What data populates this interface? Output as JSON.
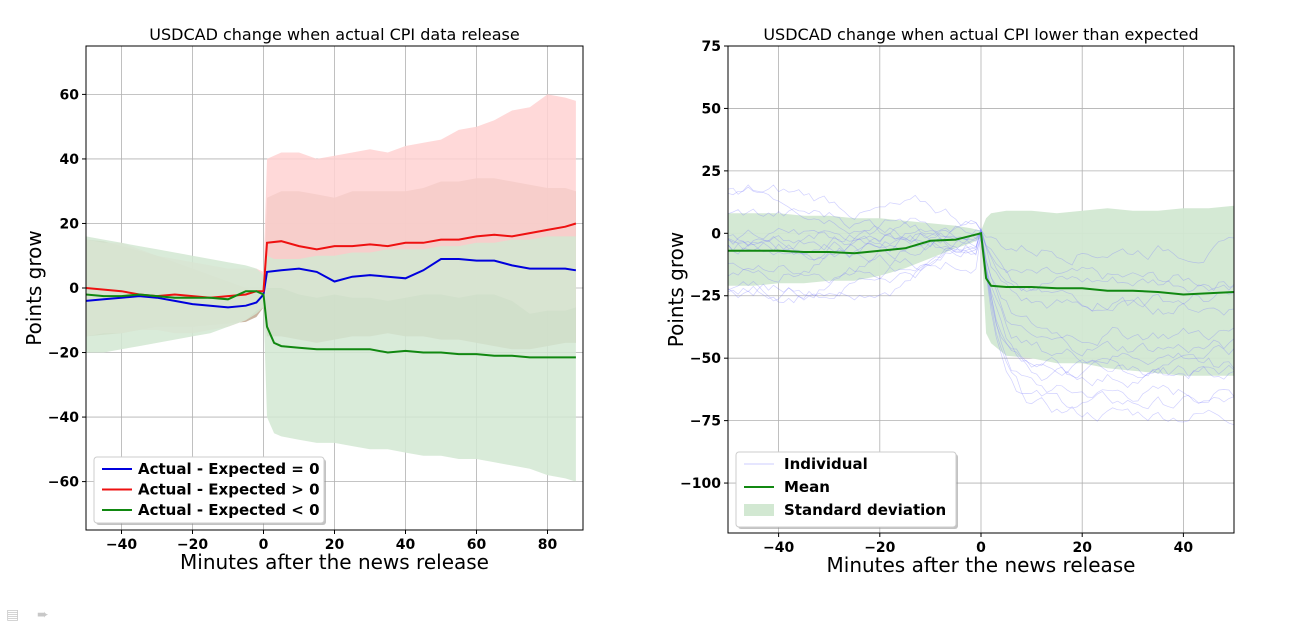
{
  "chart_data": [
    {
      "type": "line",
      "title": "USDCAD change when actual CPI data release",
      "xlabel": "Minutes after the news release",
      "ylabel": "Points grow",
      "xlim": [
        -50,
        90
      ],
      "ylim": [
        -75,
        75
      ],
      "xticks": [
        -40,
        -20,
        0,
        20,
        40,
        60,
        80
      ],
      "xtick_labels": [
        "−40",
        "−20",
        "0",
        "20",
        "40",
        "60",
        "80"
      ],
      "yticks": [
        -60,
        -40,
        -20,
        0,
        20,
        40,
        60
      ],
      "ytick_labels": [
        "−60",
        "−40",
        "−20",
        "0",
        "20",
        "40",
        "60"
      ],
      "grid": true,
      "legend_position": "lower-left",
      "series": [
        {
          "name": "Actual - Expected = 0",
          "color": "#0000dd",
          "x": [
            -50,
            -45,
            -40,
            -35,
            -30,
            -25,
            -20,
            -15,
            -10,
            -5,
            -2,
            0,
            1,
            5,
            10,
            15,
            20,
            25,
            30,
            35,
            40,
            45,
            50,
            55,
            60,
            65,
            70,
            75,
            80,
            85,
            88
          ],
          "y": [
            -4,
            -3.5,
            -3,
            -2.5,
            -3,
            -4,
            -5,
            -5.5,
            -6,
            -5.5,
            -4.5,
            -2,
            5,
            5.5,
            6,
            5,
            2,
            3.5,
            4,
            3.5,
            3,
            5.5,
            9,
            9,
            8.5,
            8.5,
            7,
            6,
            6,
            6,
            5.5
          ],
          "band_lower": [
            -15,
            -14.5,
            -14,
            -13,
            -12,
            -12,
            -12,
            -11.5,
            -11,
            -10.5,
            -9,
            -6,
            -15,
            -15,
            -16,
            -17,
            -16,
            -15,
            -15,
            -14,
            -15,
            -15,
            -16,
            -16,
            -17,
            -18,
            -19,
            -19,
            -18,
            -17,
            -17
          ],
          "band_upper": [
            15,
            14.5,
            13,
            11.5,
            10,
            8,
            6,
            4,
            2,
            0,
            -2,
            -3,
            28,
            30,
            30,
            29,
            28,
            30,
            30,
            30,
            30,
            31,
            33,
            33,
            34,
            34,
            33,
            32,
            31,
            31,
            30
          ],
          "band_color": "#c2a890"
        },
        {
          "name": "Actual - Expected > 0",
          "color": "#ee1111",
          "x": [
            -50,
            -45,
            -40,
            -35,
            -30,
            -25,
            -20,
            -15,
            -10,
            -5,
            -2,
            0,
            1,
            5,
            10,
            15,
            20,
            25,
            30,
            35,
            40,
            45,
            50,
            55,
            60,
            65,
            70,
            75,
            80,
            85,
            88
          ],
          "y": [
            0,
            -0.5,
            -1,
            -2,
            -2.5,
            -2,
            -2.5,
            -3,
            -2.5,
            -2,
            -1,
            -1,
            14,
            14.5,
            13,
            12,
            13,
            13,
            13.5,
            13,
            14,
            14,
            15,
            15,
            16,
            16.5,
            16,
            17,
            18,
            19,
            20
          ],
          "band_lower": [
            -15,
            -14,
            -14,
            -13,
            -13,
            -14,
            -14,
            -13,
            -12,
            -10,
            -7,
            -6,
            0,
            0,
            -2,
            -3,
            -2,
            -3,
            -3,
            -4,
            -3,
            -2,
            -2,
            -3,
            -2,
            -2,
            -4,
            -8,
            -7,
            -7,
            -6
          ],
          "band_upper": [
            15,
            14,
            14,
            12,
            10,
            9,
            8,
            7,
            6,
            6,
            6,
            5,
            40,
            42,
            42,
            40,
            41,
            42,
            43,
            42,
            44,
            45,
            46,
            49,
            50,
            52,
            55,
            56,
            60,
            59,
            58
          ],
          "band_color": "#ffd2d2"
        },
        {
          "name": "Actual - Expected < 0",
          "color": "#118811",
          "x": [
            -50,
            -45,
            -40,
            -35,
            -30,
            -25,
            -20,
            -15,
            -10,
            -5,
            -2,
            0,
            1,
            3,
            5,
            10,
            15,
            20,
            25,
            30,
            35,
            40,
            45,
            50,
            55,
            60,
            65,
            70,
            75,
            80,
            85,
            88
          ],
          "y": [
            -2,
            -2.5,
            -2.5,
            -2,
            -2.5,
            -3,
            -3,
            -3,
            -3.5,
            -1,
            -1,
            -2,
            -12,
            -17,
            -18,
            -18.5,
            -19,
            -19,
            -19,
            -19,
            -20,
            -19.5,
            -20,
            -20,
            -20.5,
            -20.5,
            -21,
            -21,
            -21.5,
            -21.5,
            -21.5,
            -21.5
          ],
          "band_lower": [
            -20,
            -20,
            -19,
            -18,
            -17,
            -16,
            -15,
            -14,
            -12,
            -10,
            -8,
            -6,
            -40,
            -45,
            -46,
            -47,
            -48,
            -48,
            -49,
            -50,
            -50,
            -51,
            -52,
            -52,
            -53,
            -53,
            -54,
            -55,
            -56,
            -58,
            -59,
            -60
          ],
          "band_upper": [
            16,
            15,
            14,
            13,
            12,
            11,
            10,
            9,
            8,
            7,
            6,
            4,
            10,
            9,
            9,
            9,
            10,
            10,
            11,
            11,
            12,
            12,
            12,
            13,
            13,
            14,
            14,
            15,
            15,
            16,
            16,
            16
          ],
          "band_color": "#d2e8d2"
        }
      ]
    },
    {
      "type": "line",
      "title": "USDCAD change when actual CPI lower than expected",
      "xlabel": "Minutes after the news release",
      "ylabel": "Points grow",
      "xlim": [
        -50,
        50
      ],
      "ylim": [
        -120,
        75
      ],
      "xticks": [
        -40,
        -20,
        0,
        20,
        40
      ],
      "xtick_labels": [
        "−40",
        "−20",
        "0",
        "20",
        "40"
      ],
      "yticks": [
        75,
        50,
        25,
        0,
        -25,
        -50,
        -75,
        -100
      ],
      "ytick_labels": [
        "75",
        "50",
        "25",
        "0",
        "−25",
        "−50",
        "−75",
        "−100"
      ],
      "grid": true,
      "legend_position": "lower-left",
      "series": [
        {
          "name": "Individual",
          "color": "#7a7aff",
          "style": "many thin translucent lines",
          "count": 14
        },
        {
          "name": "Mean",
          "color": "#118811",
          "x": [
            -50,
            -45,
            -40,
            -35,
            -30,
            -25,
            -20,
            -15,
            -10,
            -5,
            -2,
            0,
            1,
            2,
            5,
            10,
            15,
            20,
            25,
            30,
            35,
            40,
            45,
            50
          ],
          "y": [
            -7,
            -7,
            -7,
            -7.5,
            -7.5,
            -8,
            -7,
            -6,
            -3,
            -2.5,
            -1,
            0,
            -18,
            -21,
            -21.5,
            -21.5,
            -22,
            -22,
            -23,
            -23,
            -23.5,
            -24.5,
            -24,
            -23.5
          ]
        },
        {
          "name": "Standard deviation",
          "color": "#d2e8d2",
          "x": [
            -50,
            -45,
            -40,
            -35,
            -30,
            -25,
            -20,
            -15,
            -10,
            -5,
            -2,
            0,
            1,
            2,
            5,
            10,
            15,
            20,
            25,
            30,
            35,
            40,
            45,
            50
          ],
          "lower": [
            -21,
            -21,
            -20,
            -20,
            -19,
            -19,
            -17,
            -14,
            -10,
            -6,
            -4,
            -2,
            -40,
            -44,
            -49,
            -50,
            -52,
            -52,
            -54,
            -55,
            -56,
            -57,
            -57,
            -57
          ],
          "upper": [
            8,
            8,
            8,
            7,
            7,
            6,
            6,
            5,
            4,
            3,
            2,
            1,
            6,
            8,
            9,
            9,
            8,
            9,
            10,
            9,
            9,
            10,
            10,
            11
          ]
        }
      ]
    }
  ],
  "toolbar": {
    "menu_icon": "menu-icon",
    "forward_icon": "arrow-right-icon"
  }
}
